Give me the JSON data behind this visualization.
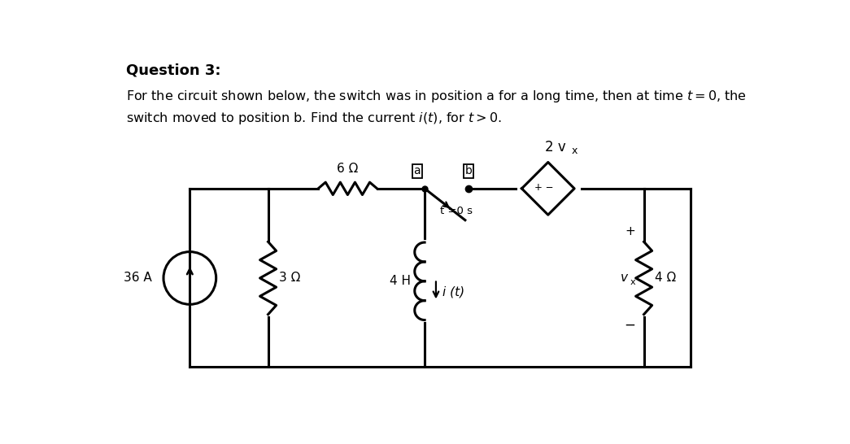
{
  "bg_color": "#ffffff",
  "circuit_color": "#000000",
  "fig_width": 10.45,
  "fig_height": 5.46,
  "title": "Question 3:",
  "line1": "For the circuit shown below, the switch was in position a for a long time, then at time $t = 0$, the",
  "line2": "switch moved to position b. Find the current $i(t)$, for $t > 0$.",
  "label_36A": "36 A",
  "label_3ohm": "3 Ω",
  "label_6ohm": "6 Ω",
  "label_4H": "4 H",
  "label_4ohm": "4 Ω",
  "label_2vx": "2 v",
  "label_it": "i (t)",
  "label_t0": "t =0 s",
  "label_vx": "v",
  "label_a": "a",
  "label_b": "b",
  "label_plus": "+",
  "label_minus": "−",
  "label_pm": "+ −"
}
